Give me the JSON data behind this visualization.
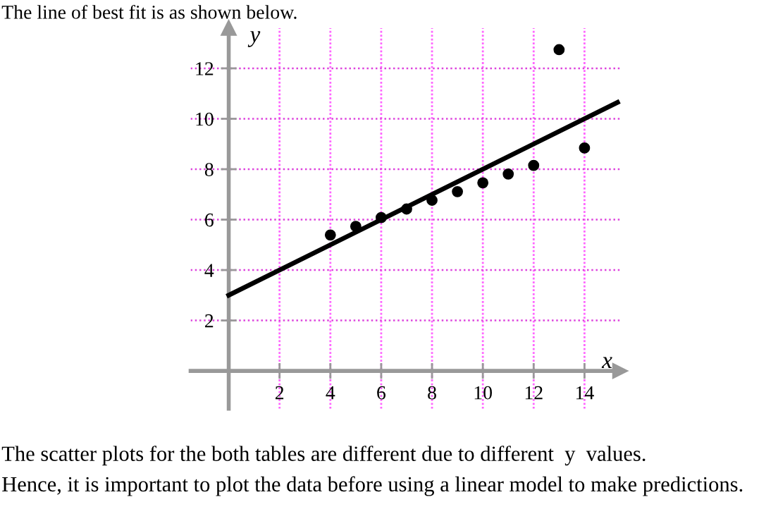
{
  "chart_data": {
    "type": "scatter",
    "title": "The line of best fit is as shown below.",
    "xlabel": "x",
    "ylabel": "y",
    "x": [
      4,
      5,
      6,
      7,
      8,
      9,
      10,
      11,
      12,
      13,
      14
    ],
    "series": [
      {
        "color": "#000000",
        "values": [
          5.39,
          5.73,
          6.08,
          6.42,
          6.77,
          7.11,
          7.46,
          7.81,
          8.15,
          12.74,
          8.84
        ]
      },
      {
        "type": "line",
        "marker": "none",
        "color": "#000000",
        "x": [
          0,
          15.3
        ],
        "values": [
          3,
          10.65
        ]
      }
    ],
    "xlim": [
      -1.5,
      15.4
    ],
    "ylim": [
      -1.5,
      13.6
    ],
    "xticks": [
      2,
      4,
      6,
      8,
      10,
      12,
      14
    ],
    "yticks": [
      2,
      4,
      6,
      8,
      10,
      12
    ],
    "grid": true,
    "marker": "circle",
    "annotations": [
      "The scatter plots for the both tables are different due to different  y  values.",
      "Hence, it is important to plot the data before using a linear model to make predictions."
    ]
  }
}
